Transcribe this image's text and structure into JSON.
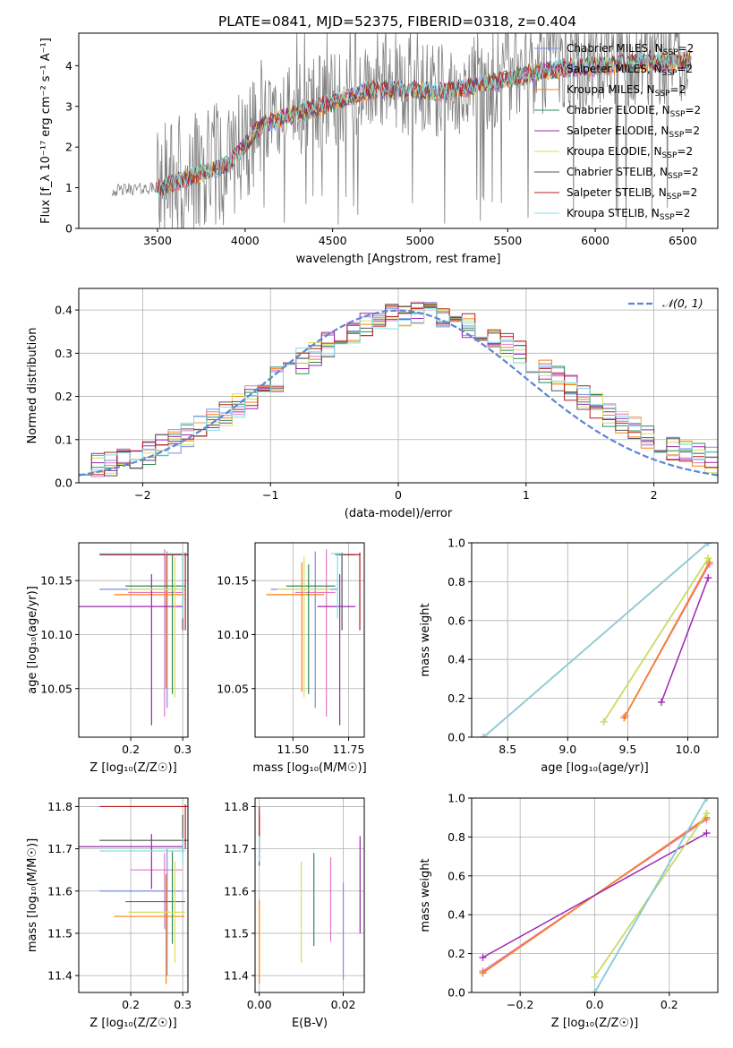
{
  "figure_title": "PLATE=0841, MJD=52375, FIBERID=0318, z=0.404",
  "colors": {
    "Chabrier MILES": "#7b8fe0",
    "Salpeter MILES": "#e377c2",
    "Kroupa MILES": "#ff7f0e",
    "Chabrier ELODIE": "#2e8b57",
    "Salpeter ELODIE": "#9c27b0",
    "Kroupa ELODIE": "#d4e157",
    "Chabrier STELIB": "#555555",
    "Salpeter STELIB": "#b71c1c",
    "Kroupa STELIB": "#80deea",
    "data": "#808080",
    "normal": "#5b86d6"
  },
  "chart_data": [
    {
      "id": "spectrum",
      "type": "line",
      "xlabel": "wavelength [Angstrom, rest frame]",
      "ylabel": "Flux [f_λ 10⁻¹⁷ erg cm⁻² s⁻¹ A⁻¹]",
      "xlim": [
        3050,
        6700
      ],
      "ylim": [
        0,
        4.8
      ],
      "xticks": [
        3500,
        4000,
        4500,
        5000,
        5500,
        6000,
        6500
      ],
      "yticks": [
        0,
        1,
        2,
        3,
        4
      ],
      "legend_position": "right",
      "legend": [
        {
          "label": "Chabrier MILES, N",
          "sub": "SSP",
          "tail": "=2",
          "series": "Chabrier MILES"
        },
        {
          "label": "Salpeter MILES, N",
          "sub": "SSP",
          "tail": "=2",
          "series": "Salpeter MILES"
        },
        {
          "label": "Kroupa MILES, N",
          "sub": "SSP",
          "tail": "=2",
          "series": "Kroupa MILES"
        },
        {
          "label": "Chabrier ELODIE, N",
          "sub": "SSP",
          "tail": "=2",
          "series": "Chabrier ELODIE"
        },
        {
          "label": "Salpeter ELODIE, N",
          "sub": "SSP",
          "tail": "=2",
          "series": "Salpeter ELODIE"
        },
        {
          "label": "Kroupa ELODIE, N",
          "sub": "SSP",
          "tail": "=2",
          "series": "Kroupa ELODIE"
        },
        {
          "label": "Chabrier STELIB, N",
          "sub": "SSP",
          "tail": "=2",
          "series": "Chabrier STELIB"
        },
        {
          "label": "Salpeter STELIB, N",
          "sub": "SSP",
          "tail": "=2",
          "series": "Salpeter STELIB"
        },
        {
          "label": "Kroupa STELIB, N",
          "sub": "SSP",
          "tail": "=2",
          "series": "Kroupa STELIB"
        }
      ],
      "continuum_x": [
        3200,
        3300,
        3500,
        3700,
        3900,
        4000,
        4100,
        4300,
        4500,
        4700,
        4900,
        5100,
        5300,
        5500,
        5700,
        5900,
        6100,
        6300,
        6500
      ],
      "continuum_y": [
        0.9,
        0.95,
        1.0,
        1.3,
        1.6,
        2.1,
        2.6,
        2.9,
        3.15,
        3.45,
        3.5,
        3.4,
        3.55,
        3.75,
        3.95,
        4.05,
        4.1,
        4.15,
        4.2
      ],
      "model_start": 3500,
      "data_start": 3240,
      "data_end": 6530
    },
    {
      "id": "residuals",
      "type": "line",
      "xlabel": "(data-model)/error",
      "ylabel": "Normed distribution",
      "xlim": [
        -2.5,
        2.5
      ],
      "ylim": [
        0,
        0.45
      ],
      "xticks": [
        -2,
        -1,
        0,
        1,
        2
      ],
      "yticks": [
        0.0,
        0.1,
        0.2,
        0.3,
        0.4
      ],
      "legend": "𝒩(0, 1)",
      "legend_position": "top-right",
      "grid": true
    },
    {
      "id": "age_vs_Z",
      "type": "scatter",
      "xlabel": "Z [log₁₀(Z/Z☉)]",
      "ylabel": "age  [log₁₀(age/yr)]",
      "xlim": [
        0.1,
        0.31
      ],
      "ylim": [
        10.005,
        10.185
      ],
      "xticks": [
        0.2,
        0.3
      ],
      "yticks": [
        10.05,
        10.1,
        10.15
      ],
      "grid": true,
      "points": [
        {
          "series": "Chabrier MILES",
          "x": 0.27,
          "y": 10.142,
          "xerr": [
            0.13,
            0.03
          ],
          "yerr": [
            0.11,
            0.035
          ]
        },
        {
          "series": "Salpeter MILES",
          "x": 0.265,
          "y": 10.139,
          "xerr": [
            0.07,
            0.035
          ],
          "yerr": [
            0.115,
            0.04
          ]
        },
        {
          "series": "Kroupa MILES",
          "x": 0.268,
          "y": 10.137,
          "xerr": [
            0.1,
            0.035
          ],
          "yerr": [
            0.087,
            0.036
          ]
        },
        {
          "series": "Chabrier ELODIE",
          "x": 0.28,
          "y": 10.145,
          "xerr": [
            0.09,
            0.025
          ],
          "yerr": [
            0.1,
            0.03
          ]
        },
        {
          "series": "Salpeter ELODIE",
          "x": 0.24,
          "y": 10.126,
          "xerr": [
            0.21,
            0.06
          ],
          "yerr": [
            0.11,
            0.03
          ]
        },
        {
          "series": "Kroupa ELODIE",
          "x": 0.285,
          "y": 10.142,
          "xerr": [
            0.09,
            0.02
          ],
          "yerr": [
            0.1,
            0.03
          ]
        },
        {
          "series": "Chabrier STELIB",
          "x": 0.3,
          "y": 10.174,
          "xerr": [
            0.16,
            0.01
          ],
          "yerr": [
            0.07,
            0.002
          ]
        },
        {
          "series": "Salpeter STELIB",
          "x": 0.305,
          "y": 10.174,
          "xerr": [
            0.165,
            0.005
          ],
          "yerr": [
            0.07,
            0.002
          ]
        },
        {
          "series": "Kroupa STELIB",
          "x": 0.3,
          "y": 10.175,
          "xerr": [
            0.16,
            0.005
          ],
          "yerr": [
            0.06,
            0.001
          ]
        }
      ]
    },
    {
      "id": "age_vs_mass",
      "type": "scatter",
      "xlabel": "mass [log₁₀(M/M☉)]",
      "ylabel": "",
      "xlim": [
        11.33,
        11.82
      ],
      "ylim": [
        10.005,
        10.185
      ],
      "xticks": [
        11.5,
        11.75
      ],
      "yticks": [
        10.05,
        10.1,
        10.15
      ],
      "grid": true,
      "points": [
        {
          "series": "Chabrier MILES",
          "x": 11.6,
          "y": 10.142,
          "xerr": [
            0.2,
            0.1
          ],
          "yerr": [
            0.11,
            0.035
          ]
        },
        {
          "series": "Salpeter MILES",
          "x": 11.65,
          "y": 10.139,
          "xerr": [
            0.14,
            0.04
          ],
          "yerr": [
            0.115,
            0.04
          ]
        },
        {
          "series": "Kroupa MILES",
          "x": 11.54,
          "y": 10.137,
          "xerr": [
            0.16,
            0.1
          ],
          "yerr": [
            0.09,
            0.03
          ]
        },
        {
          "series": "Chabrier ELODIE",
          "x": 11.57,
          "y": 10.145,
          "xerr": [
            0.1,
            0.12
          ],
          "yerr": [
            0.1,
            0.02
          ]
        },
        {
          "series": "Salpeter ELODIE",
          "x": 11.71,
          "y": 10.126,
          "xerr": [
            0.1,
            0.07
          ],
          "yerr": [
            0.11,
            0.03
          ]
        },
        {
          "series": "Kroupa ELODIE",
          "x": 11.55,
          "y": 10.142,
          "xerr": [
            0.12,
            0.12
          ],
          "yerr": [
            0.1,
            0.03
          ]
        },
        {
          "series": "Chabrier STELIB",
          "x": 11.72,
          "y": 10.174,
          "xerr": [
            0.03,
            0.06
          ],
          "yerr": [
            0.07,
            0.002
          ]
        },
        {
          "series": "Salpeter STELIB",
          "x": 11.8,
          "y": 10.174,
          "xerr": [
            0.07,
            0.003
          ],
          "yerr": [
            0.07,
            0.002
          ]
        },
        {
          "series": "Kroupa STELIB",
          "x": 11.7,
          "y": 10.175,
          "xerr": [
            0.03,
            0.03
          ],
          "yerr": [
            0.06,
            0.001
          ]
        }
      ]
    },
    {
      "id": "weight_vs_age",
      "type": "line",
      "xlabel": "age  [log₁₀(age/yr)]",
      "ylabel": "mass weight",
      "xlim": [
        8.2,
        10.25
      ],
      "ylim": [
        0,
        1
      ],
      "xticks": [
        8.5,
        9.0,
        9.5,
        10.0
      ],
      "yticks": [
        0.0,
        0.2,
        0.4,
        0.6,
        0.8,
        1.0
      ],
      "grid": true,
      "series": [
        {
          "name": "Chabrier MILES",
          "x": [
            9.47,
            10.18
          ],
          "y": [
            0.1,
            0.9
          ]
        },
        {
          "name": "Salpeter MILES",
          "x": [
            9.48,
            10.18
          ],
          "y": [
            0.11,
            0.89
          ]
        },
        {
          "name": "Kroupa MILES",
          "x": [
            9.47,
            10.18
          ],
          "y": [
            0.1,
            0.9
          ]
        },
        {
          "name": "Chabrier ELODIE",
          "x": [
            9.3,
            10.17
          ],
          "y": [
            0.08,
            0.92
          ]
        },
        {
          "name": "Salpeter ELODIE",
          "x": [
            9.78,
            10.17
          ],
          "y": [
            0.18,
            0.82
          ]
        },
        {
          "name": "Kroupa ELODIE",
          "x": [
            9.3,
            10.17
          ],
          "y": [
            0.08,
            0.92
          ]
        },
        {
          "name": "Chabrier STELIB",
          "x": [
            8.3,
            10.17
          ],
          "y": [
            0.0,
            1.0
          ]
        },
        {
          "name": "Salpeter STELIB",
          "x": [
            8.3,
            10.17
          ],
          "y": [
            0.0,
            1.0
          ]
        },
        {
          "name": "Kroupa STELIB",
          "x": [
            8.3,
            10.17
          ],
          "y": [
            0.0,
            1.0
          ]
        }
      ]
    },
    {
      "id": "mass_vs_Z",
      "type": "scatter",
      "xlabel": "Z [log₁₀(Z/Z☉)]",
      "ylabel": "mass [log₁₀(M/M☉)]",
      "xlim": [
        0.1,
        0.31
      ],
      "ylim": [
        11.36,
        11.82
      ],
      "xticks": [
        0.2,
        0.3
      ],
      "yticks": [
        11.4,
        11.5,
        11.6,
        11.7,
        11.8
      ],
      "grid": true,
      "points": [
        {
          "series": "Chabrier MILES",
          "x": 0.27,
          "y": 11.6,
          "xerr": [
            0.13,
            0.03
          ],
          "yerr": [
            0.2,
            0.1
          ]
        },
        {
          "series": "Salpeter MILES",
          "x": 0.265,
          "y": 11.65,
          "xerr": [
            0.065,
            0.035
          ],
          "yerr": [
            0.14,
            0.04
          ]
        },
        {
          "series": "Kroupa MILES",
          "x": 0.268,
          "y": 11.54,
          "xerr": [
            0.1,
            0.035
          ],
          "yerr": [
            0.16,
            0.1
          ]
        },
        {
          "series": "Chabrier ELODIE",
          "x": 0.28,
          "y": 11.575,
          "xerr": [
            0.09,
            0.025
          ],
          "yerr": [
            0.1,
            0.12
          ]
        },
        {
          "series": "Salpeter ELODIE",
          "x": 0.24,
          "y": 11.705,
          "xerr": [
            0.21,
            0.06
          ],
          "yerr": [
            0.1,
            0.03
          ]
        },
        {
          "series": "Kroupa ELODIE",
          "x": 0.285,
          "y": 11.55,
          "xerr": [
            0.09,
            0.02
          ],
          "yerr": [
            0.12,
            0.12
          ]
        },
        {
          "series": "Chabrier STELIB",
          "x": 0.3,
          "y": 11.72,
          "xerr": [
            0.16,
            0.01
          ],
          "yerr": [
            0.03,
            0.06
          ]
        },
        {
          "series": "Salpeter STELIB",
          "x": 0.305,
          "y": 11.8,
          "xerr": [
            0.165,
            0.005
          ],
          "yerr": [
            0.1,
            0.005
          ]
        },
        {
          "series": "Kroupa STELIB",
          "x": 0.3,
          "y": 11.695,
          "xerr": [
            0.16,
            0.005
          ],
          "yerr": [
            0.03,
            0.03
          ]
        }
      ]
    },
    {
      "id": "mass_vs_EBV",
      "type": "scatter",
      "xlabel": "E(B-V)",
      "ylabel": "",
      "xlim": [
        -0.001,
        0.025
      ],
      "ylim": [
        11.36,
        11.82
      ],
      "xticks": [
        0.0,
        0.02
      ],
      "yticks": [
        11.4,
        11.5,
        11.6,
        11.7,
        11.8
      ],
      "grid": true,
      "points": [
        {
          "series": "Chabrier MILES",
          "x": 0.02,
          "y": 11.5,
          "yerr": [
            0.11,
            0.12
          ]
        },
        {
          "series": "Salpeter MILES",
          "x": 0.017,
          "y": 11.58,
          "yerr": [
            0.1,
            0.1
          ]
        },
        {
          "series": "Kroupa MILES",
          "x": 0.0,
          "y": 11.48,
          "yerr": [
            0.1,
            0.1
          ]
        },
        {
          "series": "Chabrier ELODIE",
          "x": 0.013,
          "y": 11.58,
          "yerr": [
            0.11,
            0.11
          ]
        },
        {
          "series": "Salpeter ELODIE",
          "x": 0.024,
          "y": 11.61,
          "yerr": [
            0.11,
            0.12
          ]
        },
        {
          "series": "Kroupa ELODIE",
          "x": 0.01,
          "y": 11.55,
          "yerr": [
            0.12,
            0.12
          ]
        },
        {
          "series": "Chabrier STELIB",
          "x": 0.0,
          "y": 11.72,
          "yerr": [
            0.06,
            0.06
          ]
        },
        {
          "series": "Salpeter STELIB",
          "x": 0.0,
          "y": 11.72,
          "yerr": [
            0.04,
            0.08
          ]
        },
        {
          "series": "Kroupa STELIB",
          "x": 0.0,
          "y": 11.7,
          "yerr": [
            0.03,
            0.03
          ]
        }
      ]
    },
    {
      "id": "weight_vs_Z",
      "type": "line",
      "xlabel": "Z [log₁₀(Z/Z☉)]",
      "ylabel": "mass weight",
      "xlim": [
        -0.33,
        0.33
      ],
      "ylim": [
        0,
        1
      ],
      "xticks": [
        -0.2,
        0.0,
        0.2
      ],
      "yticks": [
        0.0,
        0.2,
        0.4,
        0.6,
        0.8,
        1.0
      ],
      "grid": true,
      "series": [
        {
          "name": "Chabrier MILES",
          "x": [
            -0.3,
            0.3
          ],
          "y": [
            0.1,
            0.9
          ]
        },
        {
          "name": "Salpeter MILES",
          "x": [
            -0.3,
            0.3
          ],
          "y": [
            0.11,
            0.89
          ]
        },
        {
          "name": "Kroupa MILES",
          "x": [
            -0.3,
            0.3
          ],
          "y": [
            0.1,
            0.9
          ]
        },
        {
          "name": "Chabrier ELODIE",
          "x": [
            0.0,
            0.3
          ],
          "y": [
            0.08,
            0.92
          ]
        },
        {
          "name": "Salpeter ELODIE",
          "x": [
            -0.3,
            0.3
          ],
          "y": [
            0.18,
            0.82
          ]
        },
        {
          "name": "Kroupa ELODIE",
          "x": [
            0.0,
            0.3
          ],
          "y": [
            0.08,
            0.92
          ]
        },
        {
          "name": "Chabrier STELIB",
          "x": [
            0.0,
            0.3
          ],
          "y": [
            0.0,
            1.0
          ]
        },
        {
          "name": "Salpeter STELIB",
          "x": [
            0.0,
            0.3
          ],
          "y": [
            0.0,
            1.0
          ]
        },
        {
          "name": "Kroupa STELIB",
          "x": [
            0.0,
            0.3
          ],
          "y": [
            0.0,
            1.0
          ]
        }
      ]
    }
  ]
}
